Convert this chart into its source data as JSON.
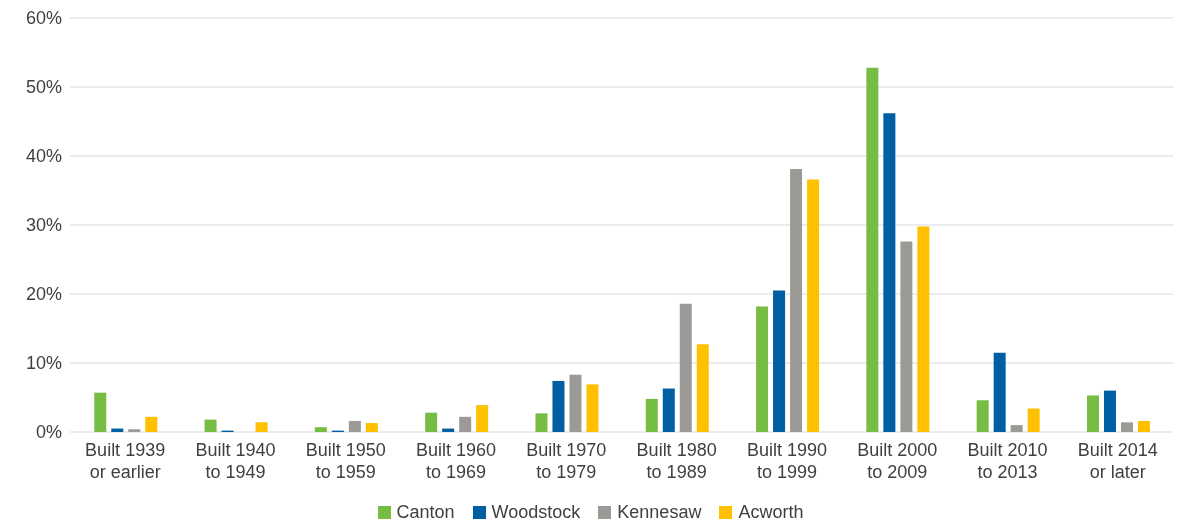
{
  "chart_data": {
    "type": "bar",
    "categories": [
      "Built 1939 or earlier",
      "Built 1940 to 1949",
      "Built 1950 to 1959",
      "Built 1960 to 1969",
      "Built 1970 to 1979",
      "Built 1980 to 1989",
      "Built 1990 to 1999",
      "Built 2000 to 2009",
      "Built 2010 to 2013",
      "Built 2014 or later"
    ],
    "series": [
      {
        "name": "Canton",
        "color": "#77bc43",
        "values": [
          5.7,
          1.8,
          0.7,
          2.8,
          2.7,
          4.8,
          18.2,
          52.8,
          4.6,
          5.3
        ]
      },
      {
        "name": "Woodstock",
        "color": "#005ea2",
        "values": [
          0.5,
          0.2,
          0.2,
          0.5,
          7.4,
          6.3,
          20.5,
          46.2,
          11.5,
          6.0
        ]
      },
      {
        "name": "Kennesaw",
        "color": "#9b9a96",
        "values": [
          0.4,
          0,
          1.6,
          2.2,
          8.3,
          18.6,
          38.1,
          27.6,
          1.0,
          1.4
        ]
      },
      {
        "name": "Acworth",
        "color": "#ffc000",
        "values": [
          2.2,
          1.4,
          1.3,
          3.9,
          6.9,
          12.7,
          36.6,
          29.8,
          3.4,
          1.6
        ]
      }
    ],
    "ylim": [
      0,
      60
    ],
    "yticks": [
      {
        "value": 0,
        "label": "0%"
      },
      {
        "value": 10,
        "label": "10%"
      },
      {
        "value": 20,
        "label": "20%"
      },
      {
        "value": 30,
        "label": "30%"
      },
      {
        "value": 40,
        "label": "40%"
      },
      {
        "value": 50,
        "label": "50%"
      },
      {
        "value": 60,
        "label": "60%"
      }
    ],
    "grid": "y",
    "legend": "bottom"
  }
}
